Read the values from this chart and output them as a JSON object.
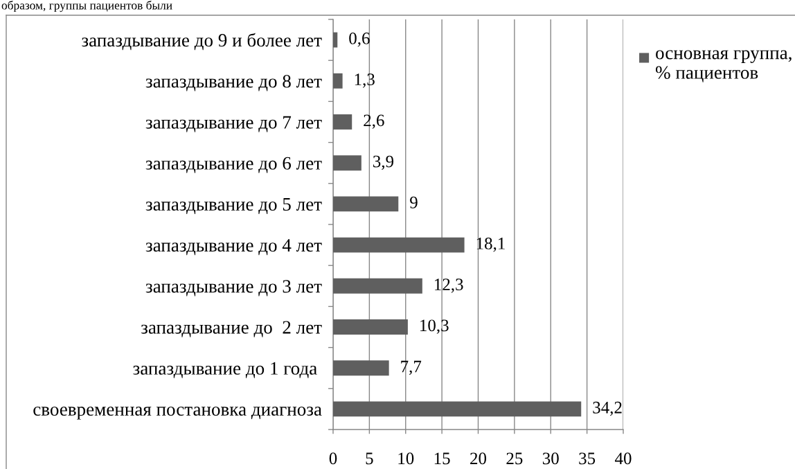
{
  "chart_data": {
    "type": "bar",
    "orientation": "horizontal",
    "categories": [
      "запаздывание до 9 и более лет",
      "запаздывание до 8 лет",
      "запаздывание до 7 лет",
      "запаздывание до 6 лет",
      "запаздывание до 5 лет",
      "запаздывание до 4 лет",
      "запаздывание до 3 лет",
      "запаздывание до  2 лет",
      "запаздывание до 1 года ",
      "своевременная постановка диагноза"
    ],
    "series": [
      {
        "name": "основная группа,\n% пациентов",
        "color": "#5f5f5f",
        "values": [
          0.6,
          1.3,
          2.6,
          3.9,
          9,
          18.1,
          12.3,
          10.3,
          7.7,
          34.2
        ],
        "value_labels": [
          "0,6",
          "1,3",
          "2,6",
          "3,9",
          "9",
          "18,1",
          "12,3",
          "10,3",
          "7,7",
          "34,2"
        ]
      }
    ],
    "xlim": [
      0,
      40
    ],
    "xticks": [
      0,
      5,
      10,
      15,
      20,
      25,
      30,
      35,
      40
    ],
    "grid": "x",
    "legend": "top right",
    "annotations": [
      "образом, группы пациентов были"
    ]
  }
}
